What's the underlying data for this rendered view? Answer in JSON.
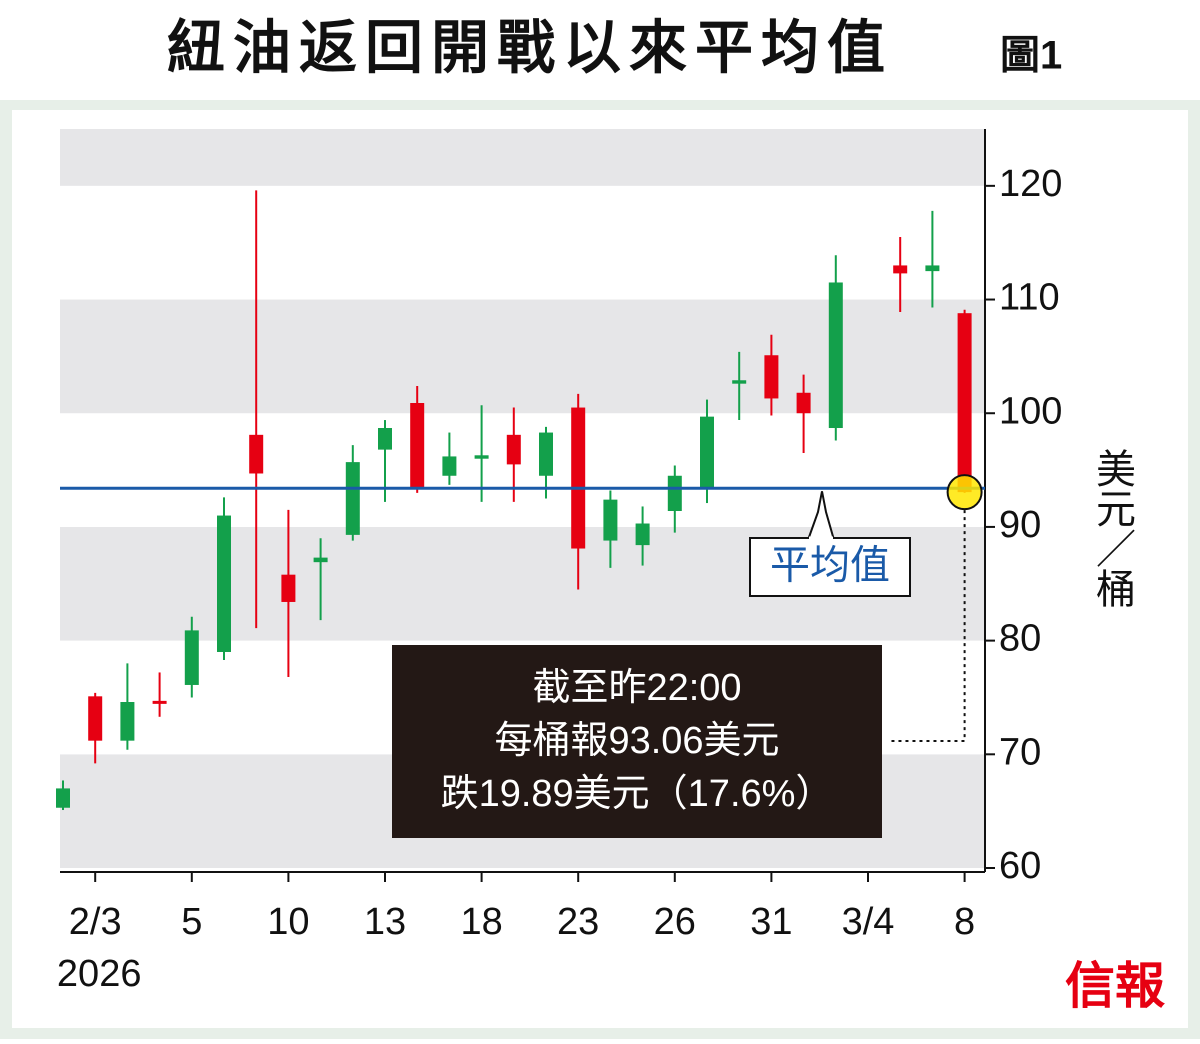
{
  "chart_data": {
    "type": "candlestick",
    "title": "紐油返回開戰以來平均值",
    "figure_label": "圖1",
    "y_axis_label": "美元／桶",
    "source_logo": "信報",
    "year_label": "2026",
    "categories": [
      null,
      "2/3",
      null,
      null,
      "5",
      null,
      null,
      "10",
      null,
      null,
      "13",
      null,
      null,
      "18",
      null,
      null,
      "23",
      null,
      null,
      "26",
      null,
      null,
      "31",
      null,
      null,
      "3/4",
      null,
      null,
      "8"
    ],
    "open": [
      65.3,
      75.1,
      71.2,
      74.7,
      76.1,
      79.0,
      98.1,
      85.8,
      86.9,
      89.3,
      96.8,
      100.9,
      94.5,
      96.0,
      98.1,
      94.5,
      100.5,
      88.8,
      88.4,
      91.4,
      93.4,
      102.6,
      105.1,
      101.8,
      98.7,
      null,
      113.0,
      112.5,
      108.8
    ],
    "high": [
      67.7,
      75.4,
      78.0,
      77.2,
      82.1,
      92.6,
      119.6,
      91.5,
      89.0,
      97.2,
      99.4,
      102.4,
      98.3,
      100.7,
      100.5,
      98.8,
      101.7,
      93.2,
      91.8,
      95.4,
      101.2,
      105.4,
      106.9,
      103.4,
      113.9,
      null,
      115.5,
      117.8,
      109.1
    ],
    "low": [
      65.1,
      69.2,
      70.4,
      73.3,
      75.0,
      78.3,
      81.1,
      76.8,
      81.8,
      88.8,
      92.2,
      93.0,
      93.7,
      92.2,
      92.2,
      92.5,
      84.5,
      86.4,
      86.6,
      89.5,
      92.1,
      99.4,
      99.8,
      96.5,
      97.6,
      null,
      108.9,
      109.3,
      93.0
    ],
    "close": [
      67.0,
      71.2,
      74.6,
      74.5,
      80.9,
      91.0,
      94.7,
      83.4,
      87.3,
      95.7,
      98.7,
      93.5,
      96.2,
      96.3,
      95.5,
      98.3,
      88.1,
      92.4,
      90.3,
      94.5,
      99.7,
      102.9,
      101.3,
      100.0,
      111.5,
      null,
      112.3,
      113.0,
      93.06
    ],
    "up_color": "#13a04b",
    "down_color": "#e60012",
    "average": {
      "label": "平均值",
      "value": 93.4,
      "color": "#1a5aa8"
    },
    "annotation": [
      "截至昨22:00",
      "每桶報93.06美元",
      "跌19.89美元（17.6%）"
    ],
    "ylim": [
      60,
      125
    ],
    "yticks": [
      60,
      70,
      80,
      90,
      100,
      110,
      120
    ],
    "band_color": "#e6e6e8"
  }
}
